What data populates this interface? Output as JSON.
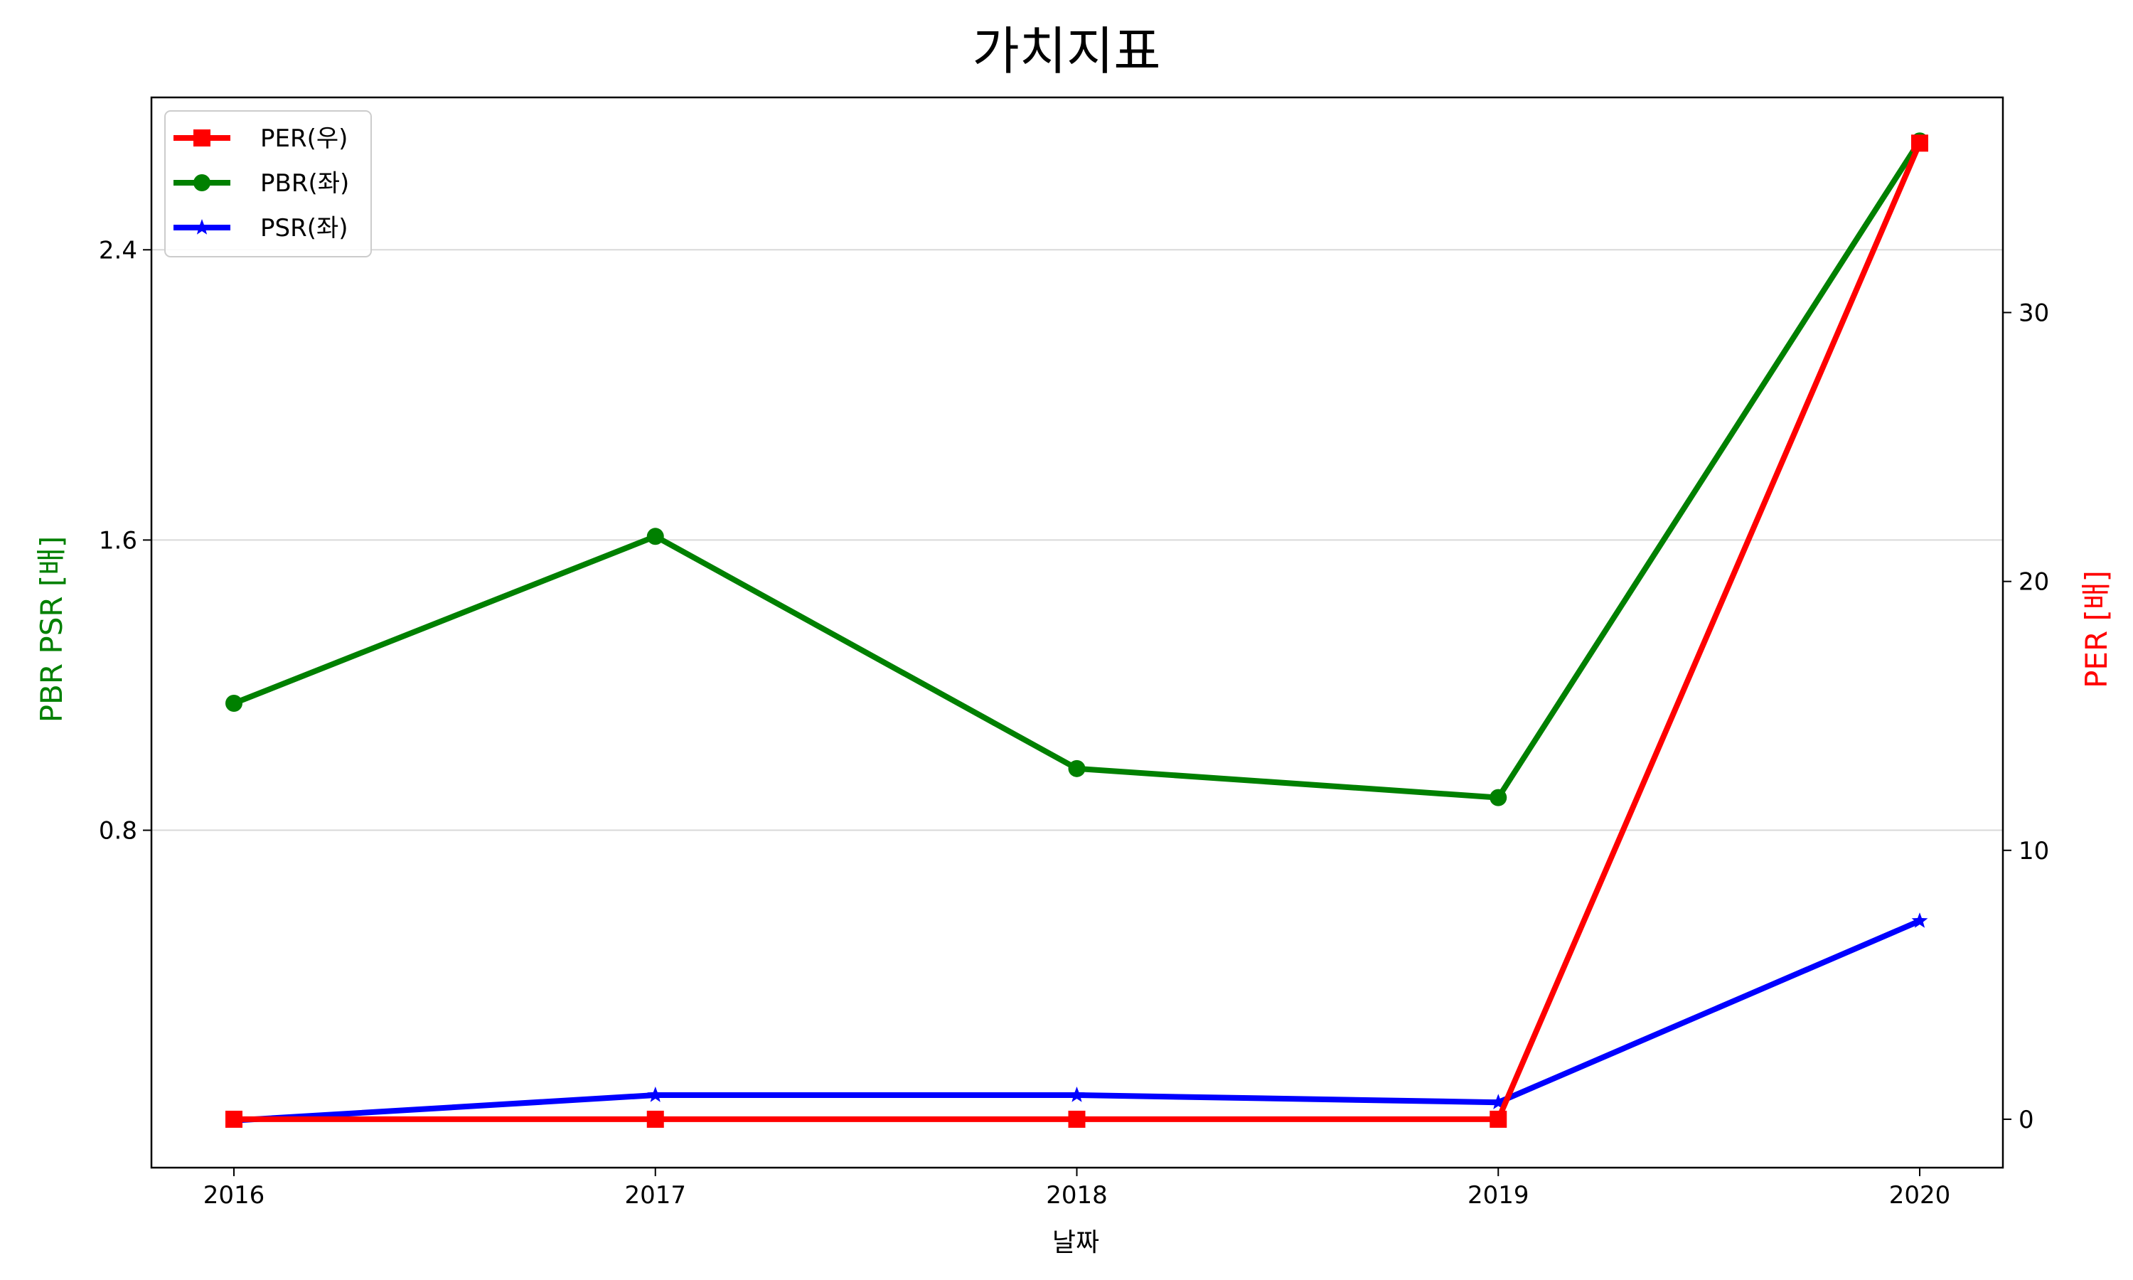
{
  "chart_data": {
    "type": "line",
    "title": "가치지표",
    "xlabel": "날짜",
    "ylabel_left": "PBR PSR [배]",
    "ylabel_right": "PER [배]",
    "categories": [
      "2016",
      "2017",
      "2018",
      "2019",
      "2020"
    ],
    "ylim_left": [
      -0.13,
      2.82
    ],
    "yticks_left": [
      0.8,
      1.6,
      2.4
    ],
    "ytick_labels_left": [
      "0.8",
      "1.6",
      "2.4"
    ],
    "ylim_right": [
      -1.8,
      38.0
    ],
    "yticks_right": [
      0,
      10,
      20,
      30
    ],
    "ytick_labels_right": [
      "0",
      "10",
      "20",
      "30"
    ],
    "grid": "horizontal (left axis)",
    "legend_position": "top-left",
    "series": [
      {
        "name": "PER(우)",
        "axis": "right",
        "color": "#ff0000",
        "marker": "square",
        "values": [
          0,
          0,
          0,
          0,
          36.3
        ]
      },
      {
        "name": "PBR(좌)",
        "axis": "left",
        "color": "#008000",
        "marker": "circle",
        "values": [
          1.15,
          1.61,
          0.97,
          0.89,
          2.7
        ]
      },
      {
        "name": "PSR(좌)",
        "axis": "left",
        "color": "#0000ff",
        "marker": "star",
        "values": [
          0.0,
          0.07,
          0.07,
          0.05,
          0.55
        ]
      }
    ]
  }
}
